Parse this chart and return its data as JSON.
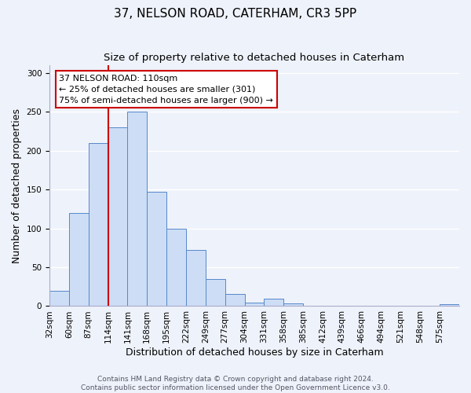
{
  "title": "37, NELSON ROAD, CATERHAM, CR3 5PP",
  "subtitle": "Size of property relative to detached houses in Caterham",
  "xlabel": "Distribution of detached houses by size in Caterham",
  "ylabel": "Number of detached properties",
  "bin_labels": [
    "32sqm",
    "60sqm",
    "87sqm",
    "114sqm",
    "141sqm",
    "168sqm",
    "195sqm",
    "222sqm",
    "249sqm",
    "277sqm",
    "304sqm",
    "331sqm",
    "358sqm",
    "385sqm",
    "412sqm",
    "439sqm",
    "466sqm",
    "494sqm",
    "521sqm",
    "548sqm",
    "575sqm"
  ],
  "bar_heights": [
    20,
    120,
    210,
    230,
    250,
    147,
    100,
    72,
    35,
    16,
    5,
    10,
    3,
    0,
    0,
    0,
    0,
    0,
    0,
    0,
    2
  ],
  "bar_color": "#ccddf5",
  "bar_edge_color": "#5588cc",
  "ylim": [
    0,
    310
  ],
  "yticks": [
    0,
    50,
    100,
    150,
    200,
    250,
    300
  ],
  "vline_index": 3,
  "vline_color": "#cc0000",
  "annotation_title": "37 NELSON ROAD: 110sqm",
  "annotation_line1": "← 25% of detached houses are smaller (301)",
  "annotation_line2": "75% of semi-detached houses are larger (900) →",
  "annotation_box_color": "#ffffff",
  "annotation_box_edge": "#cc0000",
  "footer1": "Contains HM Land Registry data © Crown copyright and database right 2024.",
  "footer2": "Contains public sector information licensed under the Open Government Licence v3.0.",
  "background_color": "#eef2fa",
  "grid_color": "#ffffff",
  "title_fontsize": 11,
  "subtitle_fontsize": 9.5,
  "axis_label_fontsize": 9,
  "tick_fontsize": 7.5,
  "annotation_fontsize": 8,
  "footer_fontsize": 6.5
}
